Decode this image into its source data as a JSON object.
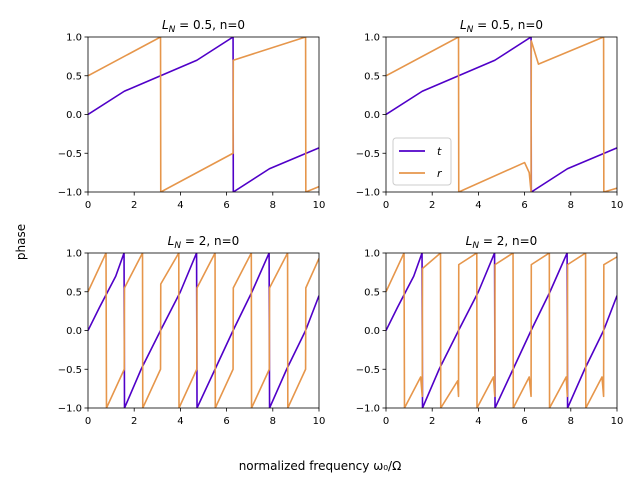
{
  "figure": {
    "ylabel": "phase",
    "xlabel": "normalized frequency ω₀/Ω"
  },
  "colors": {
    "t": "#5000c8",
    "r": "#e6964b"
  },
  "legend": [
    {
      "name": "t"
    },
    {
      "name": "r"
    }
  ],
  "chart_data": [
    {
      "type": "line",
      "title": "L_N = 0.5, n=0",
      "L_N": 0.5,
      "n": 0,
      "xlim": [
        0,
        10
      ],
      "ylim": [
        -1,
        1
      ],
      "xticks": [
        "0",
        "2",
        "4",
        "6",
        "8",
        "10"
      ],
      "yticks": [
        "-1.0",
        "-0.5",
        "0.0",
        "0.5",
        "1.0"
      ],
      "series": [
        {
          "name": "t",
          "points": [
            [
              0,
              0
            ],
            [
              1.5707,
              0.3
            ],
            [
              3.1416,
              0.5
            ],
            [
              4.7124,
              0.7
            ],
            [
              6.28,
              1.0
            ],
            [
              6.29,
              -1.0
            ],
            [
              7.854,
              -0.7
            ],
            [
              10,
              -0.43
            ]
          ]
        },
        {
          "name": "r",
          "points": [
            [
              0,
              0.5
            ],
            [
              3.14,
              1.0
            ],
            [
              3.15,
              -1.0
            ],
            [
              6.28,
              -0.5
            ],
            [
              6.29,
              0.7
            ],
            [
              9.42,
              1.0
            ],
            [
              9.43,
              -1.0
            ],
            [
              10,
              -0.93
            ]
          ]
        }
      ]
    },
    {
      "type": "line",
      "title": "L_N = 0.5, n=0",
      "L_N": 0.5,
      "n": 0,
      "xlim": [
        0,
        10
      ],
      "ylim": [
        -1,
        1
      ],
      "legend_location": "center-left",
      "xticks": [
        "0",
        "2",
        "4",
        "6",
        "8",
        "10"
      ],
      "yticks": [
        "-1.0",
        "-0.5",
        "0.0",
        "0.5",
        "1.0"
      ],
      "series": [
        {
          "name": "t",
          "points": [
            [
              0,
              0
            ],
            [
              1.5707,
              0.3
            ],
            [
              3.1416,
              0.5
            ],
            [
              4.7124,
              0.7
            ],
            [
              6.28,
              1.0
            ],
            [
              6.29,
              -1.0
            ],
            [
              7.854,
              -0.7
            ],
            [
              10,
              -0.43
            ]
          ]
        },
        {
          "name": "r",
          "points": [
            [
              0,
              0.5
            ],
            [
              3.14,
              1.0
            ],
            [
              3.15,
              -1.0
            ],
            [
              6.0,
              -0.62
            ],
            [
              6.2,
              -0.75
            ],
            [
              6.28,
              -1.0
            ],
            [
              6.29,
              0.95
            ],
            [
              6.6,
              0.65
            ],
            [
              9.42,
              1.0
            ],
            [
              9.43,
              -1.0
            ],
            [
              10,
              -0.95
            ]
          ]
        }
      ]
    },
    {
      "type": "line",
      "title": "L_N = 2, n=0",
      "L_N": 2,
      "n": 0,
      "xlim": [
        0,
        10
      ],
      "ylim": [
        -1,
        1
      ],
      "xticks": [
        "0",
        "2",
        "4",
        "6",
        "8",
        "10"
      ],
      "yticks": [
        "-1.0",
        "-0.5",
        "0.0",
        "0.5",
        "1.0"
      ],
      "series": [
        {
          "name": "t",
          "points": [
            [
              0,
              0
            ],
            [
              0.5,
              0.3
            ],
            [
              1.2,
              0.7
            ],
            [
              1.56,
              1.0
            ],
            [
              1.58,
              -1.0
            ],
            [
              2.3,
              -0.5
            ],
            [
              3.14,
              0
            ],
            [
              4.0,
              0.5
            ],
            [
              4.7,
              1.0
            ],
            [
              4.72,
              -1.0
            ],
            [
              5.5,
              -0.5
            ],
            [
              6.28,
              0
            ],
            [
              7.1,
              0.5
            ],
            [
              7.84,
              1.0
            ],
            [
              7.86,
              -1.0
            ],
            [
              8.6,
              -0.5
            ],
            [
              9.42,
              0
            ],
            [
              10,
              0.45
            ]
          ]
        },
        {
          "name": "r",
          "points": [
            [
              0,
              0.5
            ],
            [
              0.78,
              1.0
            ],
            [
              0.8,
              -1.0
            ],
            [
              1.57,
              -0.5
            ],
            [
              1.58,
              0.55
            ],
            [
              2.36,
              1.0
            ],
            [
              2.37,
              -1.0
            ],
            [
              3.14,
              -0.5
            ],
            [
              3.15,
              0.6
            ],
            [
              3.93,
              1.0
            ],
            [
              3.94,
              -1.0
            ],
            [
              4.71,
              -0.5
            ],
            [
              4.72,
              0.55
            ],
            [
              5.5,
              1.0
            ],
            [
              5.51,
              -1.0
            ],
            [
              6.28,
              -0.5
            ],
            [
              6.29,
              0.55
            ],
            [
              7.07,
              1.0
            ],
            [
              7.08,
              -1.0
            ],
            [
              7.85,
              -0.5
            ],
            [
              7.86,
              0.55
            ],
            [
              8.64,
              1.0
            ],
            [
              8.65,
              -1.0
            ],
            [
              9.42,
              -0.5
            ],
            [
              9.43,
              0.55
            ],
            [
              10,
              0.93
            ]
          ]
        }
      ]
    },
    {
      "type": "line",
      "title": "L_N = 2, n=0",
      "L_N": 2,
      "n": 0,
      "xlim": [
        0,
        10
      ],
      "ylim": [
        -1,
        1
      ],
      "xticks": [
        "0",
        "2",
        "4",
        "6",
        "8",
        "10"
      ],
      "yticks": [
        "-1.0",
        "-0.5",
        "0.0",
        "0.5",
        "1.0"
      ],
      "series": [
        {
          "name": "t",
          "points": [
            [
              0,
              0
            ],
            [
              0.5,
              0.3
            ],
            [
              1.2,
              0.7
            ],
            [
              1.56,
              1.0
            ],
            [
              1.58,
              -1.0
            ],
            [
              2.3,
              -0.5
            ],
            [
              3.14,
              0
            ],
            [
              4.0,
              0.5
            ],
            [
              4.7,
              1.0
            ],
            [
              4.72,
              -1.0
            ],
            [
              5.5,
              -0.5
            ],
            [
              6.28,
              0
            ],
            [
              7.1,
              0.5
            ],
            [
              7.84,
              1.0
            ],
            [
              7.86,
              -1.0
            ],
            [
              8.6,
              -0.5
            ],
            [
              9.42,
              0
            ],
            [
              10,
              0.45
            ]
          ]
        },
        {
          "name": "r",
          "points": [
            [
              0,
              0.5
            ],
            [
              0.78,
              1.0
            ],
            [
              0.8,
              -1.0
            ],
            [
              1.5,
              -0.6
            ],
            [
              1.57,
              -0.85
            ],
            [
              1.58,
              0.8
            ],
            [
              2.36,
              1.0
            ],
            [
              2.37,
              -1.0
            ],
            [
              3.1,
              -0.65
            ],
            [
              3.14,
              -0.85
            ],
            [
              3.15,
              0.85
            ],
            [
              3.93,
              1.0
            ],
            [
              3.94,
              -1.0
            ],
            [
              4.65,
              -0.6
            ],
            [
              4.71,
              -0.85
            ],
            [
              4.72,
              0.85
            ],
            [
              5.5,
              1.0
            ],
            [
              5.51,
              -1.0
            ],
            [
              6.2,
              -0.6
            ],
            [
              6.28,
              -0.85
            ],
            [
              6.29,
              0.85
            ],
            [
              7.07,
              1.0
            ],
            [
              7.08,
              -1.0
            ],
            [
              7.8,
              -0.6
            ],
            [
              7.85,
              -0.85
            ],
            [
              7.86,
              0.85
            ],
            [
              8.64,
              1.0
            ],
            [
              8.65,
              -1.0
            ],
            [
              9.35,
              -0.6
            ],
            [
              9.42,
              -0.85
            ],
            [
              9.43,
              0.85
            ],
            [
              10,
              0.95
            ]
          ]
        }
      ]
    }
  ]
}
